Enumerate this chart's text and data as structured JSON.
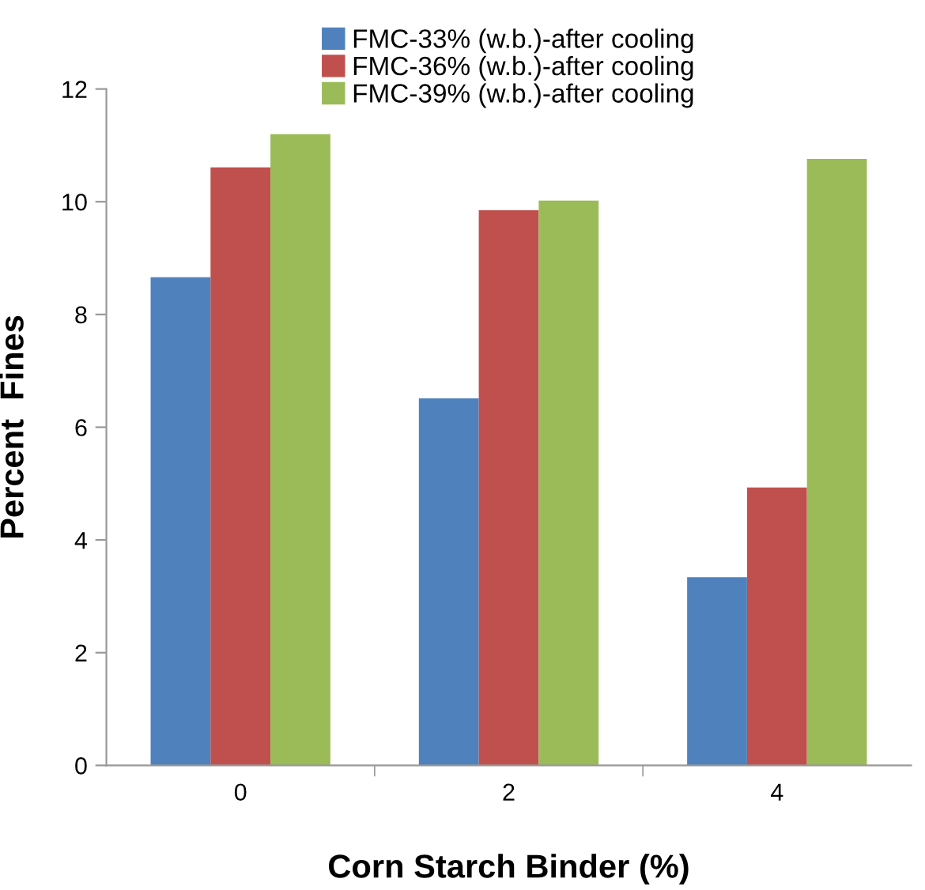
{
  "chart_data": {
    "type": "bar",
    "xlabel": "Corn Starch Binder (%)",
    "ylabel": "Percent  Fines",
    "categories": [
      "0",
      "2",
      "4"
    ],
    "series": [
      {
        "name": "FMC-33% (w.b.)-after cooling",
        "color": "#4f81bd",
        "values": [
          8.66,
          6.51,
          3.34
        ]
      },
      {
        "name": "FMC-36% (w.b.)-after cooling",
        "color": "#c0504d",
        "values": [
          10.61,
          9.85,
          4.93
        ]
      },
      {
        "name": "FMC-39% (w.b.)-after cooling",
        "color": "#9bbb59",
        "values": [
          11.2,
          10.02,
          10.76
        ]
      }
    ],
    "ylim": [
      0,
      12
    ],
    "yticks": [
      0,
      2,
      4,
      6,
      8,
      10,
      12
    ],
    "grid": false,
    "legend": "top"
  }
}
